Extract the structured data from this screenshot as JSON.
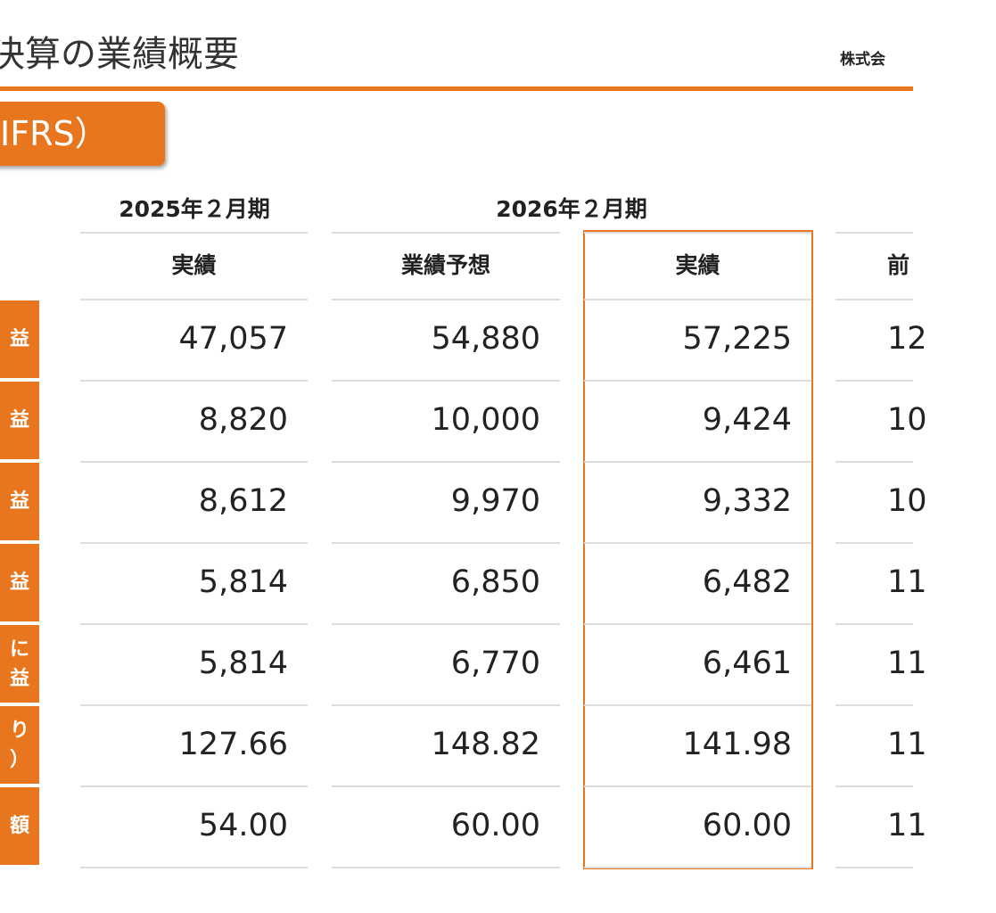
{
  "header": {
    "title": "決算の業績概要",
    "company": "株式会",
    "tab": "IFRS）"
  },
  "table": {
    "column_groups": [
      "2025年２月期",
      "2026年２月期"
    ],
    "headers": [
      "実績",
      "業績予想",
      "実績",
      "前"
    ],
    "row_labels": [
      "益",
      "益",
      "益",
      "益",
      "に\n益",
      "り\n）",
      "額"
    ],
    "rows": [
      [
        "47,057",
        "54,880",
        "57,225",
        "12"
      ],
      [
        "8,820",
        "10,000",
        "9,424",
        "10"
      ],
      [
        "8,612",
        "9,970",
        "9,332",
        "10"
      ],
      [
        "5,814",
        "6,850",
        "6,482",
        "11"
      ],
      [
        "5,814",
        "6,770",
        "6,461",
        "11"
      ],
      [
        "127.66",
        "148.82",
        "141.98",
        "11"
      ],
      [
        "54.00",
        "60.00",
        "60.00",
        "11"
      ]
    ]
  }
}
